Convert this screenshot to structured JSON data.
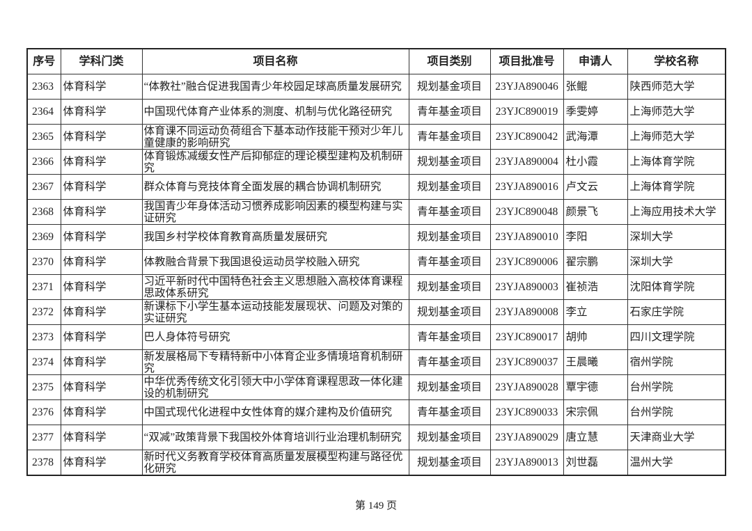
{
  "table": {
    "headers": [
      "序号",
      "学科门类",
      "项目名称",
      "项目类别",
      "项目批准号",
      "申请人",
      "学校名称"
    ],
    "rows": [
      [
        "2363",
        "体育科学",
        "“体教社”融合促进我国青少年校园足球高质量发展研究",
        "规划基金项目",
        "23YJA890046",
        "张鲲",
        "陕西师范大学"
      ],
      [
        "2364",
        "体育科学",
        "中国现代体育产业体系的测度、机制与优化路径研究",
        "青年基金项目",
        "23YJC890019",
        "季雯婷",
        "上海师范大学"
      ],
      [
        "2365",
        "体育科学",
        "体育课不同运动负荷组合下基本动作技能干预对少年儿童健康的影响研究",
        "青年基金项目",
        "23YJC890042",
        "武海潭",
        "上海师范大学"
      ],
      [
        "2366",
        "体育科学",
        "体育锻炼减缓女性产后抑郁症的理论模型建构及机制研究",
        "规划基金项目",
        "23YJA890004",
        "杜小霞",
        "上海体育学院"
      ],
      [
        "2367",
        "体育科学",
        "群众体育与竞技体育全面发展的耦合协调机制研究",
        "规划基金项目",
        "23YJA890016",
        "卢文云",
        "上海体育学院"
      ],
      [
        "2368",
        "体育科学",
        "我国青少年身体活动习惯养成影响因素的模型构建与实证研究",
        "青年基金项目",
        "23YJC890048",
        "颜景飞",
        "上海应用技术大学"
      ],
      [
        "2369",
        "体育科学",
        "我国乡村学校体育教育高质量发展研究",
        "规划基金项目",
        "23YJA890010",
        "李阳",
        "深圳大学"
      ],
      [
        "2370",
        "体育科学",
        "体教融合背景下我国退役运动员学校融入研究",
        "青年基金项目",
        "23YJC890006",
        "翟宗鹏",
        "深圳大学"
      ],
      [
        "2371",
        "体育科学",
        "习近平新时代中国特色社会主义思想融入高校体育课程思政体系研究",
        "规划基金项目",
        "23YJA890003",
        "崔祯浩",
        "沈阳体育学院"
      ],
      [
        "2372",
        "体育科学",
        "新课标下小学生基本运动技能发展现状、问题及对策的实证研究",
        "规划基金项目",
        "23YJA890008",
        "李立",
        "石家庄学院"
      ],
      [
        "2373",
        "体育科学",
        "巴人身体符号研究",
        "青年基金项目",
        "23YJC890017",
        "胡帅",
        "四川文理学院"
      ],
      [
        "2374",
        "体育科学",
        "新发展格局下专精特新中小体育企业多情境培育机制研究",
        "青年基金项目",
        "23YJC890037",
        "王晨曦",
        "宿州学院"
      ],
      [
        "2375",
        "体育科学",
        "中华优秀传统文化引领大中小学体育课程思政一体化建设的机制研究",
        "规划基金项目",
        "23YJA890028",
        "覃宇德",
        "台州学院"
      ],
      [
        "2376",
        "体育科学",
        "中国式现代化进程中女性体育的媒介建构及价值研究",
        "青年基金项目",
        "23YJC890033",
        "宋宗佩",
        "台州学院"
      ],
      [
        "2377",
        "体育科学",
        "“双减”政策背景下我国校外体育培训行业治理机制研究",
        "规划基金项目",
        "23YJA890029",
        "唐立慧",
        "天津商业大学"
      ],
      [
        "2378",
        "体育科学",
        "新时代义务教育学校体育高质量发展模型构建与路径优化研究",
        "规划基金项目",
        "23YJA890013",
        "刘世磊",
        "温州大学"
      ]
    ]
  },
  "footer": {
    "page_label": "第 149 页"
  }
}
